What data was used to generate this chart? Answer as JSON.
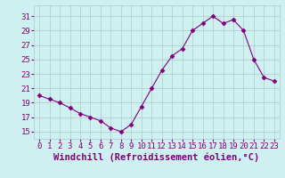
{
  "x": [
    0,
    1,
    2,
    3,
    4,
    5,
    6,
    7,
    8,
    9,
    10,
    11,
    12,
    13,
    14,
    15,
    16,
    17,
    18,
    19,
    20,
    21,
    22,
    23
  ],
  "y": [
    20.0,
    19.5,
    19.0,
    18.3,
    17.5,
    17.0,
    16.5,
    15.5,
    15.0,
    16.0,
    18.5,
    21.0,
    23.5,
    25.5,
    26.5,
    29.0,
    30.0,
    31.0,
    30.0,
    30.5,
    29.0,
    25.0,
    22.5,
    22.0
  ],
  "line_color": "#800080",
  "marker": "D",
  "marker_size": 2.5,
  "background_color": "#cff0f0",
  "grid_color": "#b0c8c8",
  "xlabel": "Windchill (Refroidissement éolien,°C)",
  "xlabel_color": "#800080",
  "xlabel_fontsize": 7.5,
  "tick_color": "#800080",
  "tick_fontsize": 6.5,
  "yticks": [
    15,
    17,
    19,
    21,
    23,
    25,
    27,
    29,
    31
  ],
  "xtick_labels": [
    "0",
    "1",
    "2",
    "3",
    "4",
    "5",
    "6",
    "7",
    "8",
    "9",
    "10",
    "11",
    "12",
    "13",
    "14",
    "15",
    "16",
    "17",
    "18",
    "19",
    "20",
    "21",
    "22",
    "23"
  ],
  "ylim": [
    14.0,
    32.5
  ],
  "xlim": [
    -0.5,
    23.5
  ]
}
